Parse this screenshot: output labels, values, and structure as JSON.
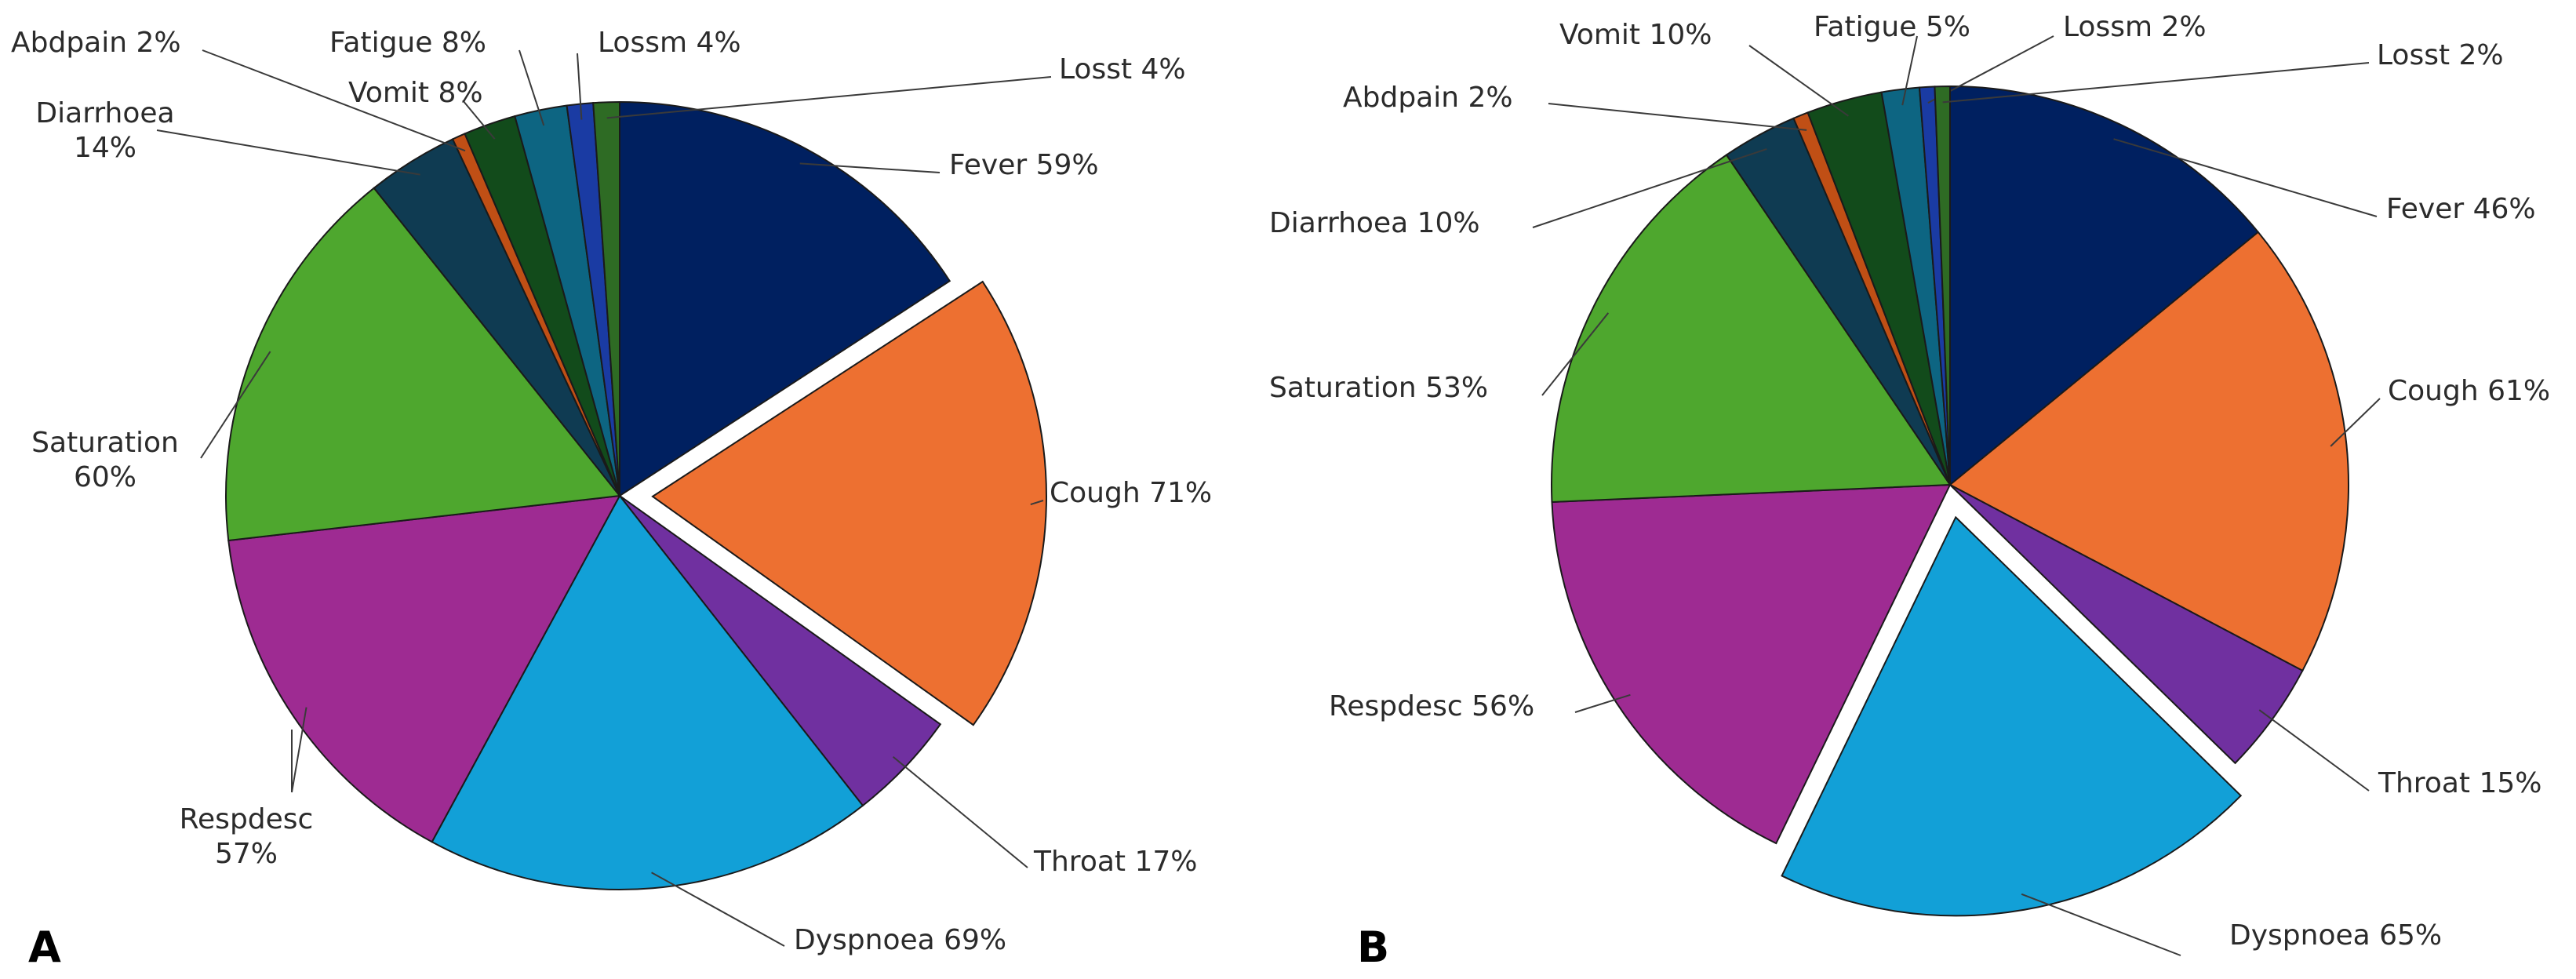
{
  "chart_data": [
    {
      "type": "pie",
      "panel": "A",
      "categories": [
        "Fever",
        "Cough",
        "Throat",
        "Dyspnoea",
        "Respdesc",
        "Saturation",
        "Diarrhoea",
        "Abdpain",
        "Vomit",
        "Fatigue",
        "Lossm",
        "Losst"
      ],
      "values": [
        59,
        71,
        17,
        69,
        57,
        60,
        14,
        2,
        8,
        8,
        4,
        4
      ],
      "labels": [
        "Fever 59%",
        "Cough 71%",
        "Throat 17%",
        "Dyspnoea 69%",
        "Respdesc 57%",
        "Saturation 60%",
        "Diarrhoea 14%",
        "Abdpain 2%",
        "Vomit 8%",
        "Fatigue 8%",
        "Lossm 4%",
        "Losst 4%"
      ],
      "exploded": "Cough"
    },
    {
      "type": "pie",
      "panel": "B",
      "categories": [
        "Fever",
        "Cough",
        "Throat",
        "Dyspnoea",
        "Respdesc",
        "Saturation",
        "Diarrhoea",
        "Abdpain",
        "Vomit",
        "Fatigue",
        "Lossm",
        "Losst"
      ],
      "values": [
        46,
        61,
        15,
        65,
        56,
        53,
        10,
        2,
        10,
        5,
        2,
        2
      ],
      "labels": [
        "Fever 46%",
        "Cough 61%",
        "Throat 15%",
        "Dyspnoea 65%",
        "Respdesc 56%",
        "Saturation 53%",
        "Diarrhoea 10%",
        "Abdpain 2%",
        "Vomit 10%",
        "Fatigue 5%",
        "Lossm 2%",
        "Losst 2%"
      ],
      "exploded": "Dyspnoea"
    }
  ],
  "colors": [
    "#002060",
    "#ED7031",
    "#7030A0",
    "#12A0D7",
    "#9E2B92",
    "#4EA72E",
    "#0F3B52",
    "#C04F15",
    "#124B1B",
    "#0D6582",
    "#1A3BA3",
    "#2E6B24"
  ]
}
